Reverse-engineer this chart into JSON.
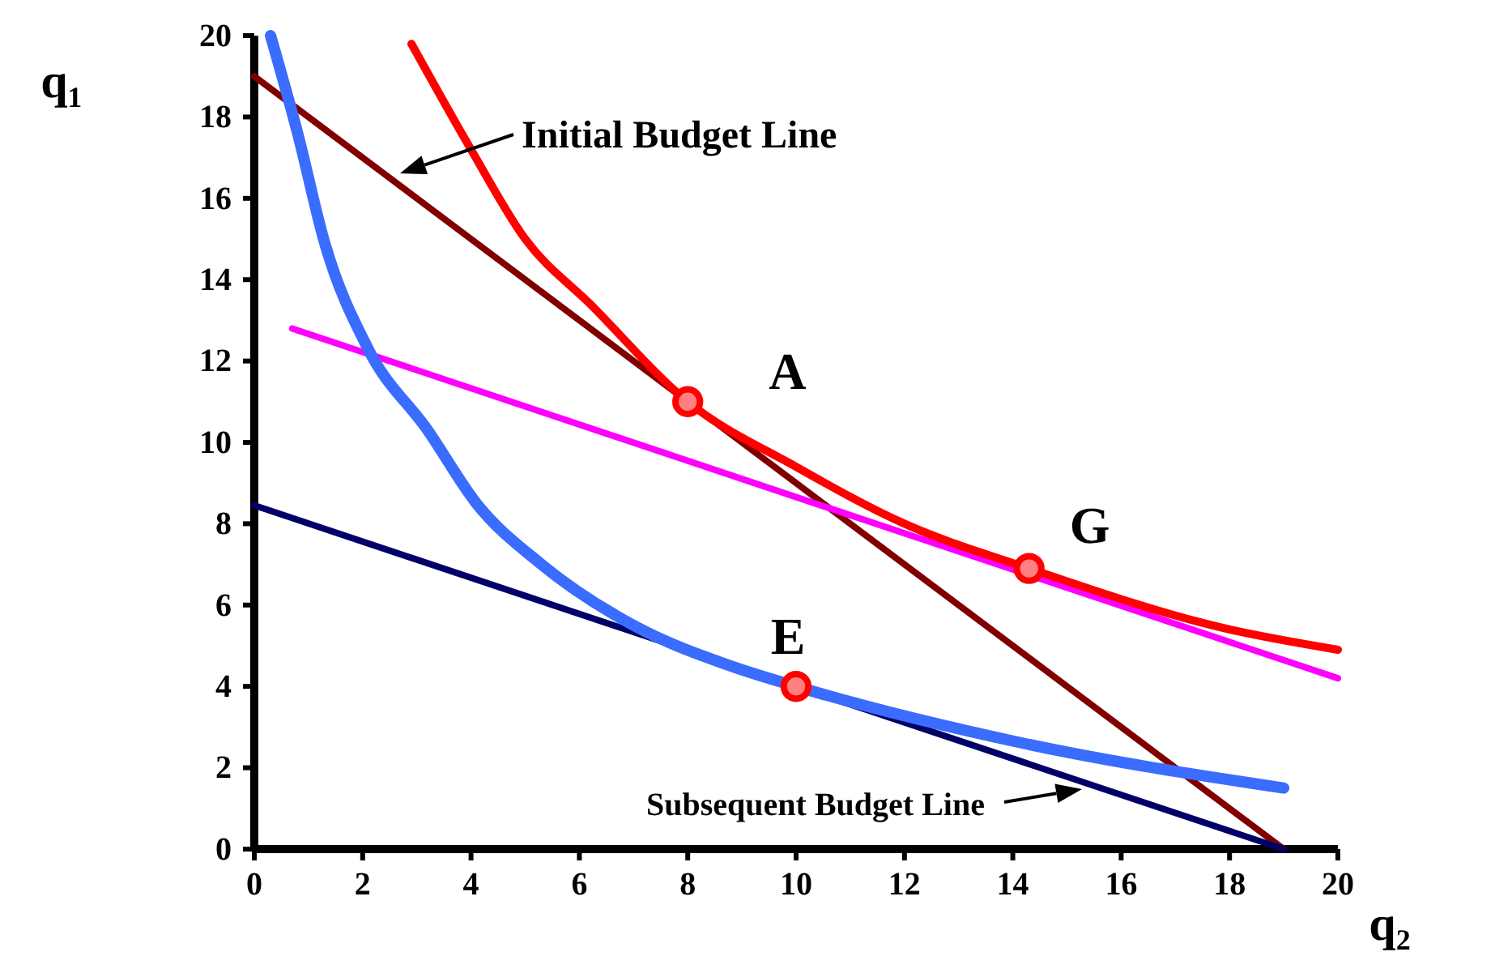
{
  "chart_data": {
    "type": "line",
    "xlabel": "q₂",
    "ylabel": "q₁",
    "xlim": [
      0,
      20
    ],
    "ylim": [
      0,
      20
    ],
    "xticks": [
      0,
      2,
      4,
      6,
      8,
      10,
      12,
      14,
      16,
      18,
      20
    ],
    "yticks": [
      0,
      2,
      4,
      6,
      8,
      10,
      12,
      14,
      16,
      18,
      20
    ],
    "grid": false,
    "marker": "none",
    "line_style": "solid",
    "series": [
      {
        "color": "#800000",
        "x": [
          0,
          19
        ],
        "values": [
          19,
          0
        ]
      },
      {
        "color": "#000066",
        "x": [
          0,
          19
        ],
        "values": [
          8.45,
          0
        ]
      },
      {
        "color": "#ff00ff",
        "x": [
          0.7,
          20
        ],
        "values": [
          12.8,
          4.2
        ]
      },
      {
        "color": "#ff0000",
        "x": [
          2.9,
          4,
          5,
          6.2,
          8,
          10,
          12,
          14.3,
          18,
          20
        ],
        "values": [
          19.8,
          17.2,
          15,
          13.4,
          11,
          9.4,
          8,
          6.9,
          5.4,
          4.9
        ]
      },
      {
        "color": "#3a6cff",
        "x": [
          0.3,
          0.8,
          1.3,
          2.1,
          3.2,
          4.1,
          5.3,
          7,
          8.8,
          10,
          14.2,
          19
        ],
        "values": [
          20,
          17.6,
          14.9,
          12.3,
          10.3,
          8.5,
          7,
          5.5,
          4.5,
          4,
          2.6,
          1.5
        ]
      },
      {
        "type": "scatter",
        "marker": "circle",
        "color": "#ff0000",
        "x": [
          8,
          14.3,
          10
        ],
        "values": [
          11,
          6.9,
          4
        ]
      }
    ],
    "annotations": [
      "Initial Budget Line",
      "Subsequent Budget Line",
      {
        "text": "A",
        "x": 8,
        "y": 11
      },
      {
        "text": "G",
        "x": 14.3,
        "y": 6.9
      },
      {
        "text": "E",
        "x": 10,
        "y": 4
      }
    ]
  }
}
